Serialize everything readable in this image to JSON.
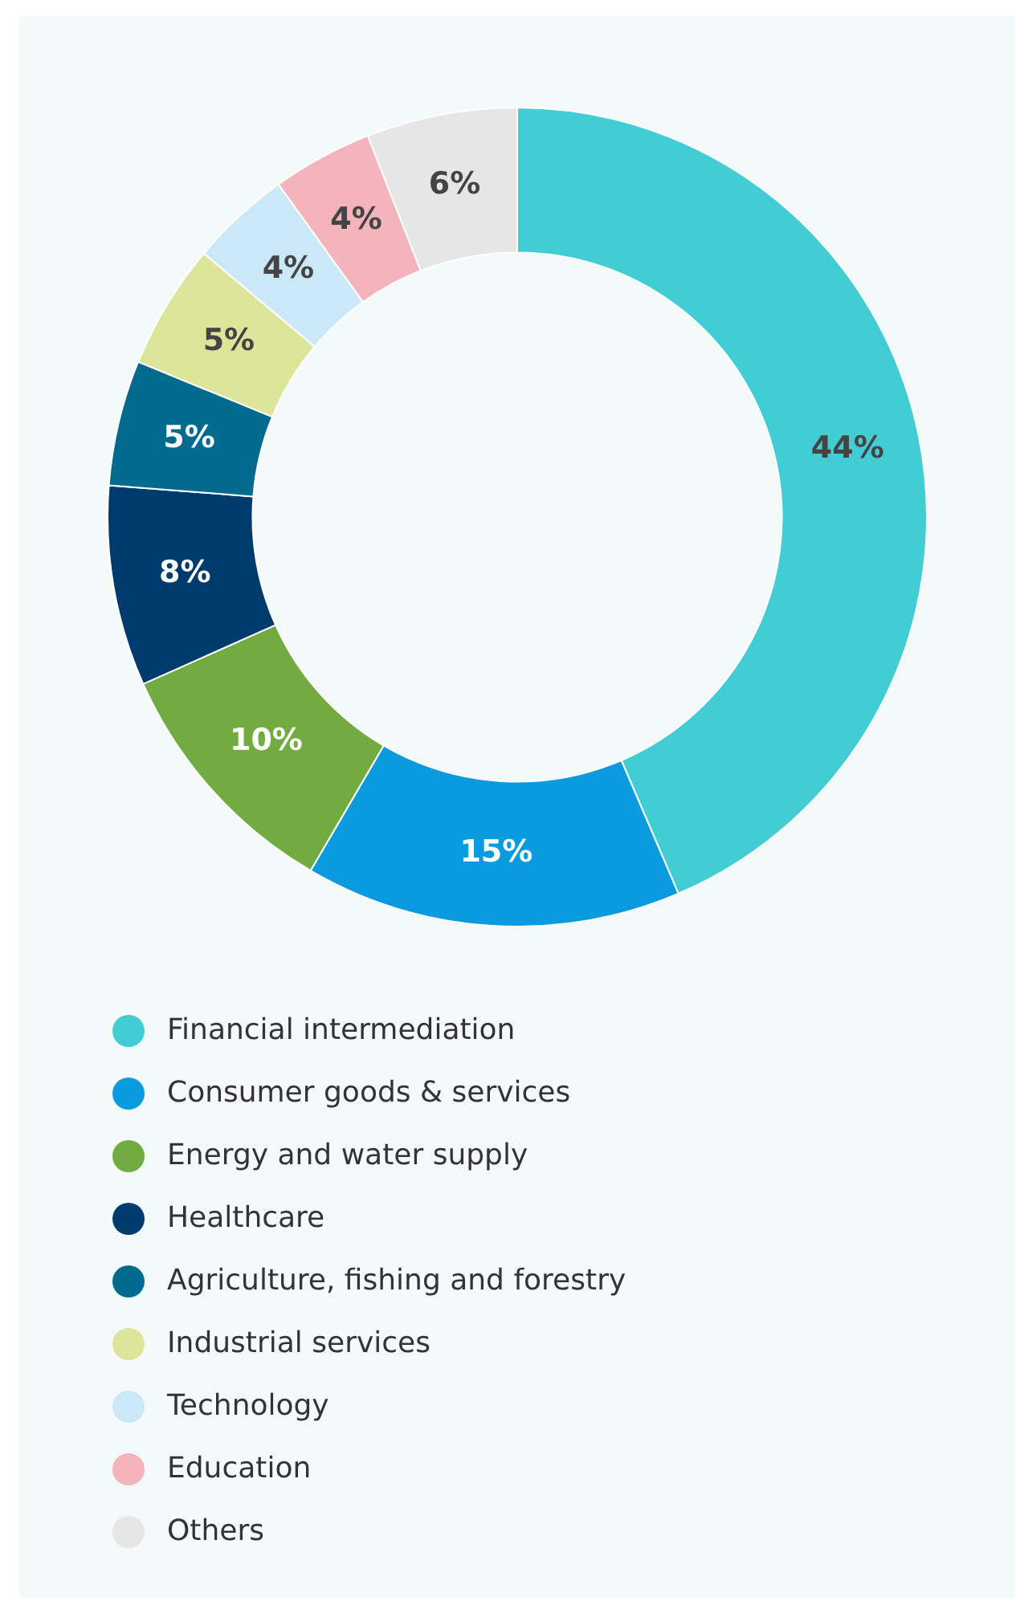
{
  "chart_data": {
    "type": "donut",
    "categories": [
      "Financial intermediation",
      "Consumer goods & services",
      "Energy and water supply",
      "Healthcare",
      "Agriculture, fishing and forestry",
      "Industrial services",
      "Technology",
      "Education",
      "Others"
    ],
    "values": [
      44,
      15,
      10,
      8,
      5,
      5,
      4,
      4,
      6
    ],
    "colors": [
      "#42ccd3",
      "#0a9ade",
      "#72ab41",
      "#003b6e",
      "#006b8f",
      "#dce59a",
      "#cbe8f8",
      "#f3b4bc",
      "#e6e6e6"
    ],
    "value_labels": [
      "44%",
      "15%",
      "10%",
      "8%",
      "5%",
      "5%",
      "4%",
      "4%",
      "6%"
    ],
    "legend": "bottom"
  }
}
